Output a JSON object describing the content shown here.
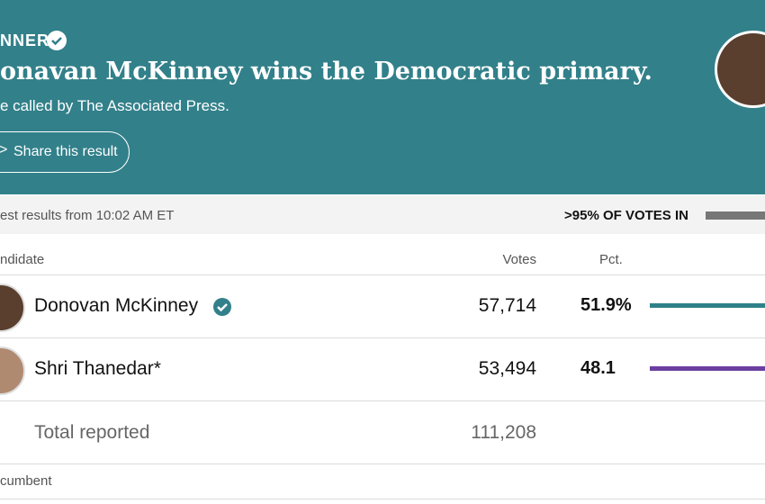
{
  "banner": {
    "label": "NNER",
    "headline": "onavan McKinney wins the Democratic primary.",
    "subline": "e called by The Associated Press.",
    "share": "Share this result"
  },
  "status": {
    "updated": "est results from 10:02 AM ET",
    "reporting": ">95% OF VOTES IN"
  },
  "table": {
    "headers": [
      "ndidate",
      "Votes",
      "Pct."
    ],
    "rows": [
      {
        "name": "Donovan McKinney",
        "votes": "57,714",
        "pct": 51.9,
        "pct_label": "51.9%",
        "color": "#2f8189"
      },
      {
        "name": "Shri Thanedar*",
        "votes": "53,494",
        "pct": 48.1,
        "color": "#6b3fa0"
      }
    ],
    "total": {
      "label": "Total reported",
      "votes": "111,208"
    }
  },
  "footnote": "cumbent"
}
